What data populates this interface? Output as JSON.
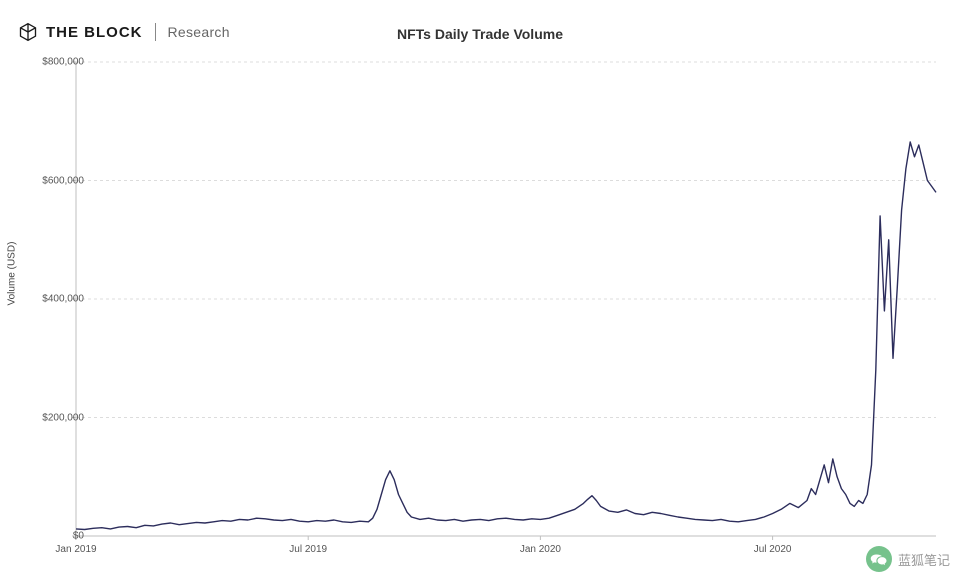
{
  "header": {
    "brand": "THE BLOCK",
    "sub_brand": "Research"
  },
  "chart": {
    "type": "line",
    "title": "NFTs Daily Trade Volume",
    "y_axis_title": "Volume (USD)",
    "line_color": "#2c2d5c",
    "line_width": 1.4,
    "background_color": "#ffffff",
    "grid_color": "#dcdcdc",
    "tick_color": "#bfbfbf",
    "axis_color": "#bfbfbf",
    "label_color": "#555555",
    "label_fontsize": 10,
    "title_fontsize": 14,
    "ylim": [
      0,
      800000
    ],
    "y_ticks": [
      {
        "value": 0,
        "label": "$0"
      },
      {
        "value": 200000,
        "label": "$200,000"
      },
      {
        "value": 400000,
        "label": "$400,000"
      },
      {
        "value": 600000,
        "label": "$600,000"
      },
      {
        "value": 800000,
        "label": "$800,000"
      }
    ],
    "x_ticks": [
      {
        "t": 0.0,
        "label": "Jan 2019"
      },
      {
        "t": 0.27,
        "label": "Jul 2019"
      },
      {
        "t": 0.54,
        "label": "Jan 2020"
      },
      {
        "t": 0.81,
        "label": "Jul 2020"
      }
    ],
    "series": [
      {
        "t": 0.0,
        "v": 12000
      },
      {
        "t": 0.01,
        "v": 11000
      },
      {
        "t": 0.02,
        "v": 13000
      },
      {
        "t": 0.03,
        "v": 14000
      },
      {
        "t": 0.04,
        "v": 12000
      },
      {
        "t": 0.05,
        "v": 15000
      },
      {
        "t": 0.06,
        "v": 16000
      },
      {
        "t": 0.07,
        "v": 14000
      },
      {
        "t": 0.08,
        "v": 18000
      },
      {
        "t": 0.09,
        "v": 17000
      },
      {
        "t": 0.1,
        "v": 20000
      },
      {
        "t": 0.11,
        "v": 22000
      },
      {
        "t": 0.12,
        "v": 19000
      },
      {
        "t": 0.13,
        "v": 21000
      },
      {
        "t": 0.14,
        "v": 23000
      },
      {
        "t": 0.15,
        "v": 22000
      },
      {
        "t": 0.16,
        "v": 24000
      },
      {
        "t": 0.17,
        "v": 26000
      },
      {
        "t": 0.18,
        "v": 25000
      },
      {
        "t": 0.19,
        "v": 28000
      },
      {
        "t": 0.2,
        "v": 27000
      },
      {
        "t": 0.21,
        "v": 30000
      },
      {
        "t": 0.22,
        "v": 29000
      },
      {
        "t": 0.23,
        "v": 27000
      },
      {
        "t": 0.24,
        "v": 26000
      },
      {
        "t": 0.25,
        "v": 28000
      },
      {
        "t": 0.26,
        "v": 25000
      },
      {
        "t": 0.27,
        "v": 24000
      },
      {
        "t": 0.28,
        "v": 26000
      },
      {
        "t": 0.29,
        "v": 25000
      },
      {
        "t": 0.3,
        "v": 27000
      },
      {
        "t": 0.31,
        "v": 24000
      },
      {
        "t": 0.32,
        "v": 23000
      },
      {
        "t": 0.33,
        "v": 25000
      },
      {
        "t": 0.34,
        "v": 24000
      },
      {
        "t": 0.345,
        "v": 30000
      },
      {
        "t": 0.35,
        "v": 45000
      },
      {
        "t": 0.355,
        "v": 70000
      },
      {
        "t": 0.36,
        "v": 95000
      },
      {
        "t": 0.365,
        "v": 110000
      },
      {
        "t": 0.37,
        "v": 95000
      },
      {
        "t": 0.375,
        "v": 70000
      },
      {
        "t": 0.38,
        "v": 55000
      },
      {
        "t": 0.385,
        "v": 40000
      },
      {
        "t": 0.39,
        "v": 32000
      },
      {
        "t": 0.4,
        "v": 28000
      },
      {
        "t": 0.41,
        "v": 30000
      },
      {
        "t": 0.42,
        "v": 27000
      },
      {
        "t": 0.43,
        "v": 26000
      },
      {
        "t": 0.44,
        "v": 28000
      },
      {
        "t": 0.45,
        "v": 25000
      },
      {
        "t": 0.46,
        "v": 27000
      },
      {
        "t": 0.47,
        "v": 28000
      },
      {
        "t": 0.48,
        "v": 26000
      },
      {
        "t": 0.49,
        "v": 29000
      },
      {
        "t": 0.5,
        "v": 30000
      },
      {
        "t": 0.51,
        "v": 28000
      },
      {
        "t": 0.52,
        "v": 27000
      },
      {
        "t": 0.53,
        "v": 29000
      },
      {
        "t": 0.54,
        "v": 28000
      },
      {
        "t": 0.55,
        "v": 30000
      },
      {
        "t": 0.56,
        "v": 35000
      },
      {
        "t": 0.57,
        "v": 40000
      },
      {
        "t": 0.58,
        "v": 45000
      },
      {
        "t": 0.59,
        "v": 55000
      },
      {
        "t": 0.595,
        "v": 62000
      },
      {
        "t": 0.6,
        "v": 68000
      },
      {
        "t": 0.605,
        "v": 60000
      },
      {
        "t": 0.61,
        "v": 50000
      },
      {
        "t": 0.62,
        "v": 42000
      },
      {
        "t": 0.63,
        "v": 40000
      },
      {
        "t": 0.64,
        "v": 44000
      },
      {
        "t": 0.65,
        "v": 38000
      },
      {
        "t": 0.66,
        "v": 36000
      },
      {
        "t": 0.67,
        "v": 40000
      },
      {
        "t": 0.68,
        "v": 38000
      },
      {
        "t": 0.69,
        "v": 35000
      },
      {
        "t": 0.7,
        "v": 32000
      },
      {
        "t": 0.71,
        "v": 30000
      },
      {
        "t": 0.72,
        "v": 28000
      },
      {
        "t": 0.73,
        "v": 27000
      },
      {
        "t": 0.74,
        "v": 26000
      },
      {
        "t": 0.75,
        "v": 28000
      },
      {
        "t": 0.76,
        "v": 25000
      },
      {
        "t": 0.77,
        "v": 24000
      },
      {
        "t": 0.78,
        "v": 26000
      },
      {
        "t": 0.79,
        "v": 28000
      },
      {
        "t": 0.8,
        "v": 32000
      },
      {
        "t": 0.81,
        "v": 38000
      },
      {
        "t": 0.82,
        "v": 45000
      },
      {
        "t": 0.83,
        "v": 55000
      },
      {
        "t": 0.84,
        "v": 48000
      },
      {
        "t": 0.85,
        "v": 60000
      },
      {
        "t": 0.855,
        "v": 80000
      },
      {
        "t": 0.86,
        "v": 70000
      },
      {
        "t": 0.865,
        "v": 95000
      },
      {
        "t": 0.87,
        "v": 120000
      },
      {
        "t": 0.875,
        "v": 90000
      },
      {
        "t": 0.88,
        "v": 130000
      },
      {
        "t": 0.885,
        "v": 100000
      },
      {
        "t": 0.89,
        "v": 80000
      },
      {
        "t": 0.895,
        "v": 70000
      },
      {
        "t": 0.9,
        "v": 55000
      },
      {
        "t": 0.905,
        "v": 50000
      },
      {
        "t": 0.91,
        "v": 60000
      },
      {
        "t": 0.915,
        "v": 55000
      },
      {
        "t": 0.92,
        "v": 70000
      },
      {
        "t": 0.925,
        "v": 120000
      },
      {
        "t": 0.93,
        "v": 280000
      },
      {
        "t": 0.935,
        "v": 540000
      },
      {
        "t": 0.94,
        "v": 380000
      },
      {
        "t": 0.945,
        "v": 500000
      },
      {
        "t": 0.95,
        "v": 300000
      },
      {
        "t": 0.955,
        "v": 420000
      },
      {
        "t": 0.96,
        "v": 550000
      },
      {
        "t": 0.965,
        "v": 620000
      },
      {
        "t": 0.97,
        "v": 665000
      },
      {
        "t": 0.975,
        "v": 640000
      },
      {
        "t": 0.98,
        "v": 660000
      },
      {
        "t": 0.985,
        "v": 630000
      },
      {
        "t": 0.99,
        "v": 600000
      },
      {
        "t": 0.995,
        "v": 590000
      },
      {
        "t": 1.0,
        "v": 580000
      }
    ]
  },
  "watermark": {
    "text": "蓝狐笔记",
    "icon_bg": "#5fb878",
    "icon_fg": "#ffffff"
  }
}
